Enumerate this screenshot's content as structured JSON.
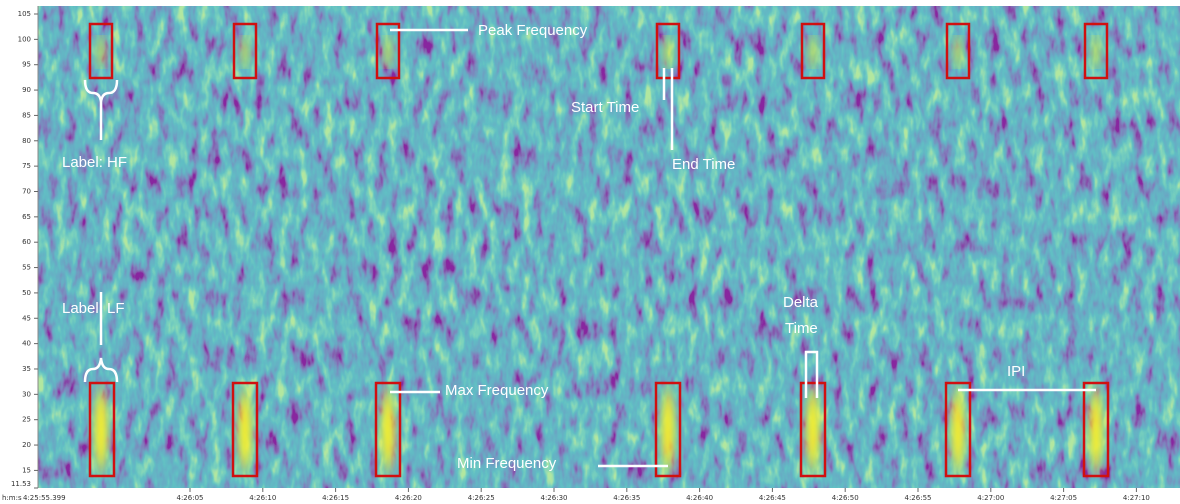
{
  "chart_data": {
    "type": "spectrogram",
    "ylim": [
      11.53,
      105
    ],
    "yticks": [
      11.53,
      15,
      20,
      25,
      30,
      35,
      40,
      45,
      50,
      55,
      60,
      65,
      70,
      75,
      80,
      85,
      90,
      95,
      100,
      105
    ],
    "x_label": "h:m:s",
    "categories": [
      "4:25:55.399",
      "4:26:05",
      "4:26:10",
      "4:26:15",
      "4:26:20",
      "4:26:25",
      "4:26:30",
      "4:26:35",
      "4:26:40",
      "4:26:45",
      "4:26:50",
      "4:26:55",
      "4:27:00",
      "4:27:05",
      "4:27:10"
    ],
    "annotations": {
      "peak": "Peak Frequency",
      "start": "Start Time",
      "end": "End Time",
      "hf": "Label: HF",
      "lf": "Label: LF",
      "delta": [
        "Delta",
        "Time"
      ],
      "max": "Max Frequency",
      "min": "Min Frequency",
      "ipi": "IPI"
    }
  }
}
